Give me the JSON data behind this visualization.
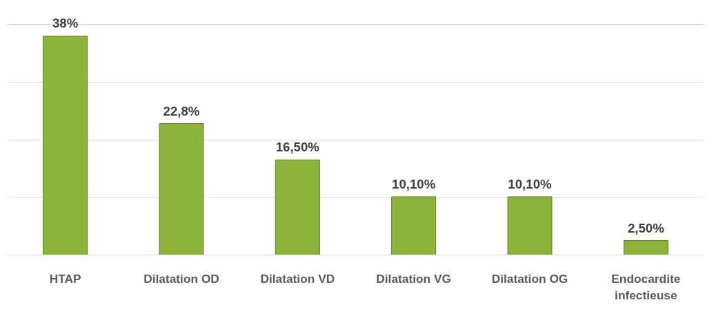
{
  "chart_data": {
    "type": "bar",
    "categories": [
      "HTAP",
      "Dilatation OD",
      "Dilatation VD",
      "Dilatation VG",
      "Dilatation OG",
      "Endocardite\ninfectieuse"
    ],
    "values": [
      38,
      22.8,
      16.5,
      10.1,
      10.1,
      2.5
    ],
    "value_labels": [
      "38%",
      "22,8%",
      "16,50%",
      "10,10%",
      "10,10%",
      "2,50%"
    ],
    "color": "#8cb43a",
    "grid": "y",
    "tick_labels": "x"
  }
}
